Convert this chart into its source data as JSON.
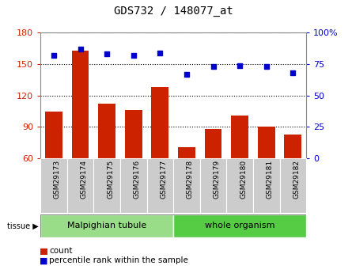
{
  "title": "GDS732 / 148077_at",
  "samples": [
    "GSM29173",
    "GSM29174",
    "GSM29175",
    "GSM29176",
    "GSM29177",
    "GSM29178",
    "GSM29179",
    "GSM29180",
    "GSM29181",
    "GSM29182"
  ],
  "count_values": [
    105,
    163,
    112,
    106,
    128,
    71,
    88,
    101,
    90,
    83
  ],
  "percentile_values": [
    82,
    87,
    83,
    82,
    84,
    67,
    73,
    74,
    73,
    68
  ],
  "ylim_left": [
    60,
    180
  ],
  "ylim_right": [
    0,
    100
  ],
  "yticks_left": [
    60,
    90,
    120,
    150,
    180
  ],
  "yticks_right": [
    0,
    25,
    50,
    75,
    100
  ],
  "bar_color": "#cc2200",
  "dot_color": "#0000cc",
  "tissue_groups": [
    {
      "label": "Malpighian tubule",
      "start": 0,
      "end": 5,
      "color": "#99dd88"
    },
    {
      "label": "whole organism",
      "start": 5,
      "end": 10,
      "color": "#55cc44"
    }
  ],
  "tissue_label": "tissue",
  "legend_items": [
    {
      "label": "count",
      "color": "#cc2200"
    },
    {
      "label": "percentile rank within the sample",
      "color": "#0000cc"
    }
  ],
  "tick_label_color_left": "#cc2200",
  "tick_label_color_right": "#0000cc",
  "xticklabel_bg": "#cccccc",
  "border_color": "#888888"
}
